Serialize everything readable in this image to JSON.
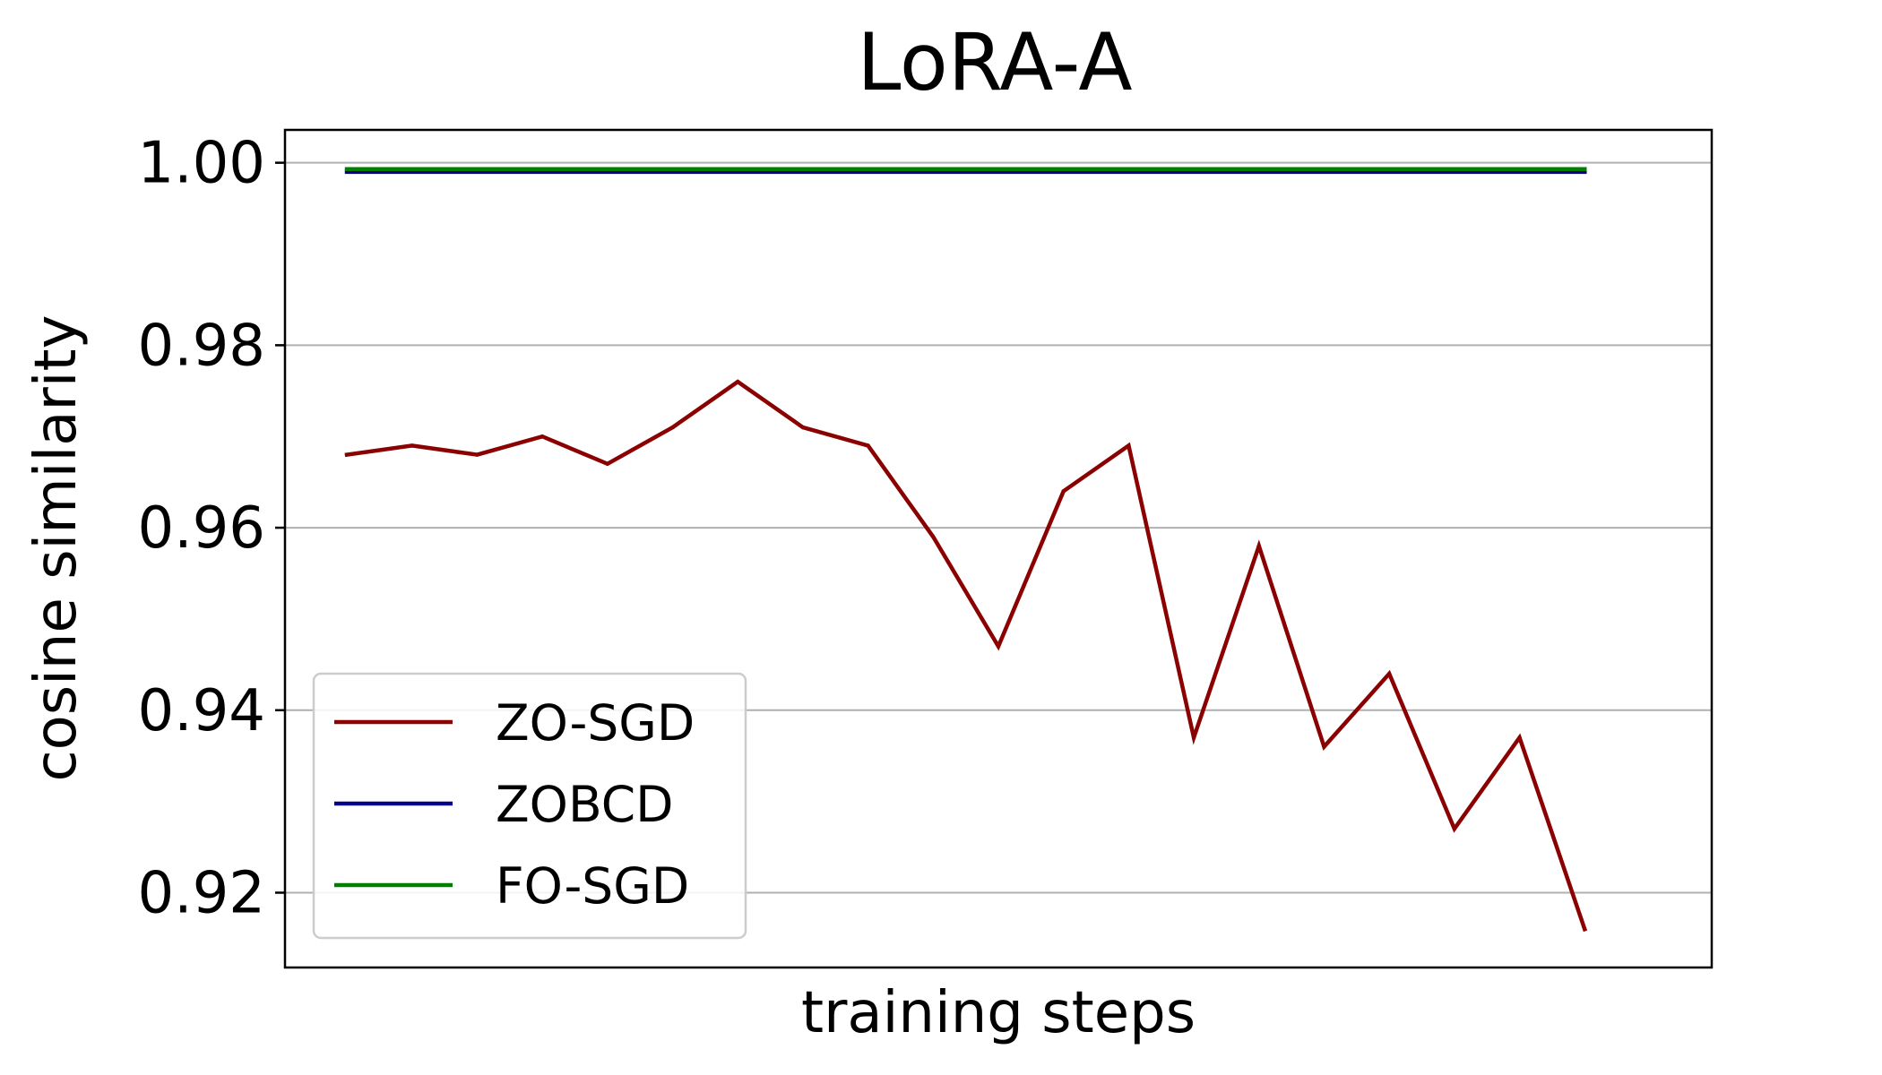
{
  "chart_data": {
    "type": "line",
    "title": "LoRA-A",
    "xlabel": "training steps",
    "ylabel": "cosine similarity",
    "ylim": [
      0.9118,
      1.0036
    ],
    "xlim": [
      -0.95,
      20.95
    ],
    "yticks": [
      0.92,
      0.94,
      0.96,
      0.98,
      1.0
    ],
    "ytick_labels": [
      "0.92",
      "0.94",
      "0.96",
      "0.98",
      "1.00"
    ],
    "x_ticks_shown": false,
    "grid": "y",
    "legend_position": "lower-left",
    "x": [
      0,
      1,
      2,
      3,
      4,
      5,
      6,
      7,
      8,
      9,
      10,
      11,
      12,
      13,
      14,
      15,
      16,
      17,
      18,
      19
    ],
    "series": [
      {
        "name": "ZO-SGD",
        "color": "#8b0000",
        "values": [
          0.968,
          0.969,
          0.968,
          0.97,
          0.967,
          0.971,
          0.976,
          0.971,
          0.969,
          0.959,
          0.947,
          0.964,
          0.969,
          0.937,
          0.958,
          0.936,
          0.944,
          0.927,
          0.937,
          0.916
        ]
      },
      {
        "name": "ZOBCD",
        "color": "#00008b",
        "values": [
          0.999,
          0.999,
          0.999,
          0.999,
          0.999,
          0.999,
          0.999,
          0.999,
          0.999,
          0.999,
          0.999,
          0.999,
          0.999,
          0.999,
          0.999,
          0.999,
          0.999,
          0.999,
          0.999,
          0.999
        ]
      },
      {
        "name": "FO-SGD",
        "color": "#008000",
        "values": [
          0.9993,
          0.9993,
          0.9993,
          0.9993,
          0.9993,
          0.9993,
          0.9993,
          0.9993,
          0.9993,
          0.9993,
          0.9993,
          0.9993,
          0.9993,
          0.9993,
          0.9993,
          0.9993,
          0.9993,
          0.9993,
          0.9993,
          0.9993
        ]
      }
    ]
  }
}
